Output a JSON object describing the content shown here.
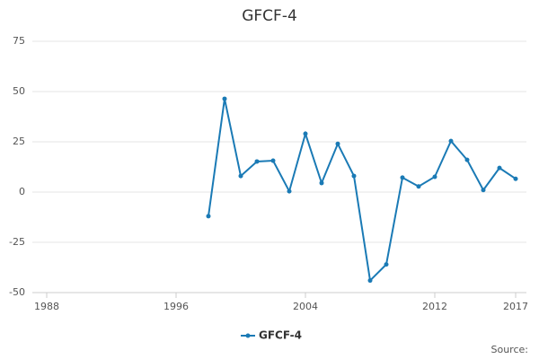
{
  "chart_data": {
    "type": "line",
    "title": "GFCF-4",
    "x": [
      1998,
      1999,
      2000,
      2001,
      2002,
      2003,
      2004,
      2005,
      2006,
      2007,
      2008,
      2009,
      2010,
      2011,
      2012,
      2013,
      2014,
      2015,
      2016,
      2017
    ],
    "series": [
      {
        "name": "GFCF-4",
        "color": "#1a7ab5",
        "values": [
          -12,
          46.4,
          8,
          15.2,
          15.6,
          0.4,
          29,
          4.5,
          24,
          8,
          -44,
          -36,
          7.2,
          2.8,
          7.6,
          25.4,
          16,
          1,
          12,
          6.6
        ]
      }
    ],
    "xlim": [
      1988,
      2017
    ],
    "xticks": [
      1988,
      1996,
      2004,
      2012,
      2017
    ],
    "ylim": [
      -50,
      75
    ],
    "yticks": [
      -50,
      -25,
      0,
      25,
      50,
      75
    ],
    "grid": true,
    "legend": "bottom",
    "source": "Source:"
  }
}
